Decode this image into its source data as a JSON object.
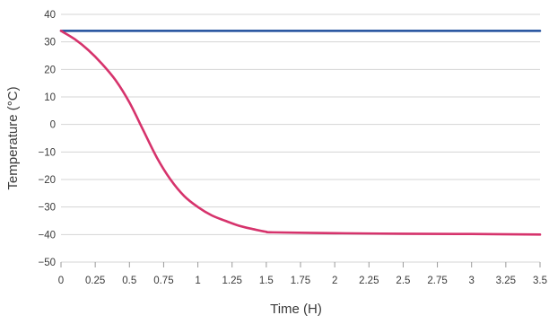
{
  "chart_data": {
    "type": "line",
    "xlabel": "Time (H)",
    "ylabel": "Temperature (°C)",
    "xlim": [
      0,
      3.5
    ],
    "ylim": [
      -50,
      40
    ],
    "x_ticks": [
      "0",
      "0.25",
      "0.5",
      "0.75",
      "1",
      "1.25",
      "1.5",
      "1.75",
      "2",
      "2.25",
      "2.5",
      "2.75",
      "3",
      "3.25",
      "3.5"
    ],
    "y_ticks": [
      "40",
      "30",
      "20",
      "10",
      "0",
      "−10",
      "−20",
      "−30",
      "−40",
      "−50"
    ],
    "grid": "horizontal",
    "series": [
      {
        "color": "#1f4e9c",
        "x": [
          0,
          3.5
        ],
        "y": [
          34,
          34
        ]
      },
      {
        "color": "#d6336c",
        "x": [
          0,
          0.1,
          0.2,
          0.3,
          0.4,
          0.5,
          0.6,
          0.7,
          0.8,
          0.9,
          1.0,
          1.1,
          1.2,
          1.3,
          1.4,
          1.5,
          1.55,
          2.0,
          2.5,
          3.0,
          3.5
        ],
        "y": [
          34,
          31,
          27,
          22,
          16,
          8,
          -2,
          -12,
          -20,
          -26,
          -30,
          -33,
          -35,
          -36.8,
          -38,
          -39,
          -39.2,
          -39.5,
          -39.7,
          -39.8,
          -40
        ]
      }
    ]
  }
}
